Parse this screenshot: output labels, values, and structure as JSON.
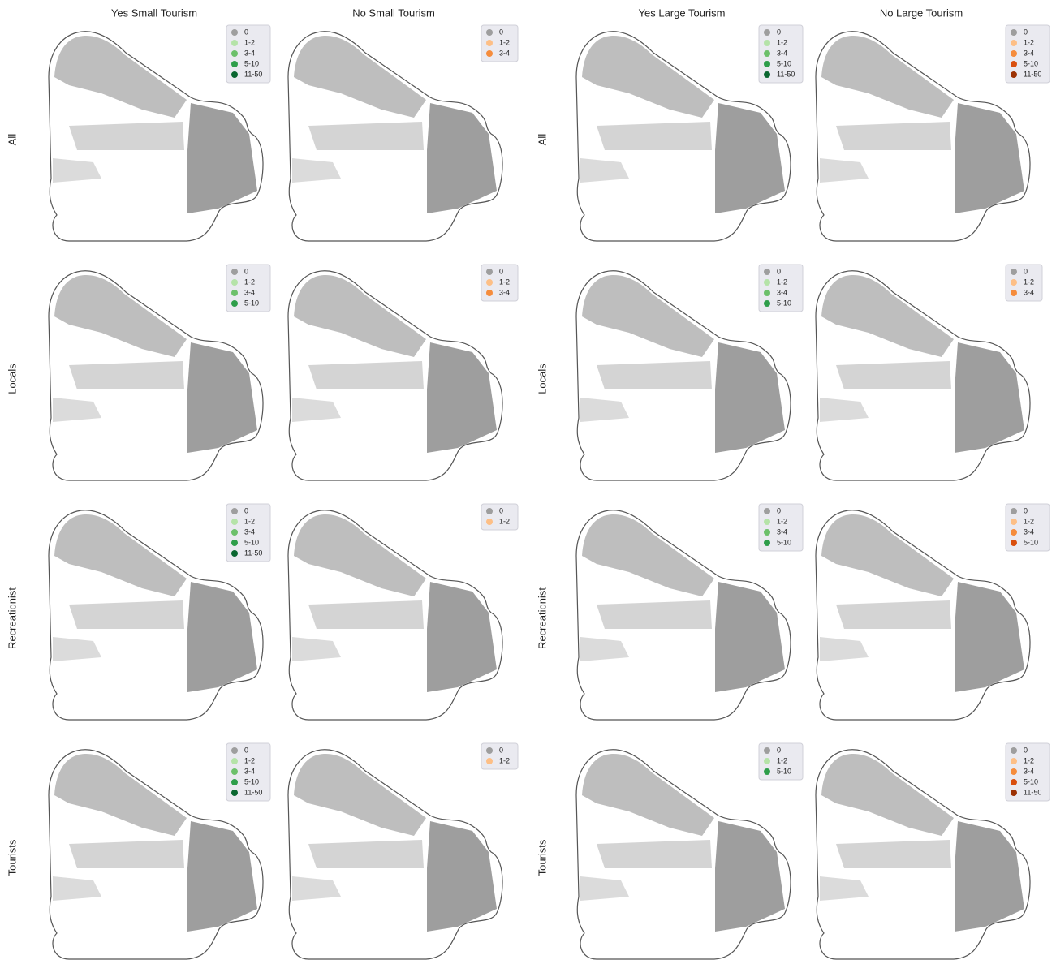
{
  "columns": [
    "Yes Small Tourism",
    "No Small Tourism",
    "Yes Large Tourism",
    "No Large Tourism"
  ],
  "rows": [
    "All",
    "Locals",
    "Recreationist",
    "Tourists"
  ],
  "panels": [
    [
      {
        "legend": [
          {
            "label": "0",
            "color": "#9e9e9e"
          },
          {
            "label": "1-2",
            "color": "#b5e3a8"
          },
          {
            "label": "3-4",
            "color": "#6cc06a"
          },
          {
            "label": "5-10",
            "color": "#2e9e4a"
          },
          {
            "label": "11-50",
            "color": "#0a6630"
          }
        ]
      },
      {
        "legend": [
          {
            "label": "0",
            "color": "#9e9e9e"
          },
          {
            "label": "1-2",
            "color": "#fdbf86"
          },
          {
            "label": "3-4",
            "color": "#f58c3c"
          }
        ]
      },
      {
        "legend": [
          {
            "label": "0",
            "color": "#9e9e9e"
          },
          {
            "label": "1-2",
            "color": "#b5e3a8"
          },
          {
            "label": "3-4",
            "color": "#6cc06a"
          },
          {
            "label": "5-10",
            "color": "#2e9e4a"
          },
          {
            "label": "11-50",
            "color": "#0a6630"
          }
        ]
      },
      {
        "legend": [
          {
            "label": "0",
            "color": "#9e9e9e"
          },
          {
            "label": "1-2",
            "color": "#fdbf86"
          },
          {
            "label": "3-4",
            "color": "#f58c3c"
          },
          {
            "label": "5-10",
            "color": "#d94f0e"
          },
          {
            "label": "11-50",
            "color": "#9c3204"
          }
        ]
      }
    ],
    [
      {
        "legend": [
          {
            "label": "0",
            "color": "#9e9e9e"
          },
          {
            "label": "1-2",
            "color": "#b5e3a8"
          },
          {
            "label": "3-4",
            "color": "#6cc06a"
          },
          {
            "label": "5-10",
            "color": "#2e9e4a"
          }
        ]
      },
      {
        "legend": [
          {
            "label": "0",
            "color": "#9e9e9e"
          },
          {
            "label": "1-2",
            "color": "#fdbf86"
          },
          {
            "label": "3-4",
            "color": "#f58c3c"
          }
        ]
      },
      {
        "legend": [
          {
            "label": "0",
            "color": "#9e9e9e"
          },
          {
            "label": "1-2",
            "color": "#b5e3a8"
          },
          {
            "label": "3-4",
            "color": "#6cc06a"
          },
          {
            "label": "5-10",
            "color": "#2e9e4a"
          }
        ]
      },
      {
        "legend": [
          {
            "label": "0",
            "color": "#9e9e9e"
          },
          {
            "label": "1-2",
            "color": "#fdbf86"
          },
          {
            "label": "3-4",
            "color": "#f58c3c"
          }
        ]
      }
    ],
    [
      {
        "legend": [
          {
            "label": "0",
            "color": "#9e9e9e"
          },
          {
            "label": "1-2",
            "color": "#b5e3a8"
          },
          {
            "label": "3-4",
            "color": "#6cc06a"
          },
          {
            "label": "5-10",
            "color": "#2e9e4a"
          },
          {
            "label": "11-50",
            "color": "#0a6630"
          }
        ]
      },
      {
        "legend": [
          {
            "label": "0",
            "color": "#9e9e9e"
          },
          {
            "label": "1-2",
            "color": "#fdbf86"
          }
        ]
      },
      {
        "legend": [
          {
            "label": "0",
            "color": "#9e9e9e"
          },
          {
            "label": "1-2",
            "color": "#b5e3a8"
          },
          {
            "label": "3-4",
            "color": "#6cc06a"
          },
          {
            "label": "5-10",
            "color": "#2e9e4a"
          }
        ]
      },
      {
        "legend": [
          {
            "label": "0",
            "color": "#9e9e9e"
          },
          {
            "label": "1-2",
            "color": "#fdbf86"
          },
          {
            "label": "3-4",
            "color": "#f58c3c"
          },
          {
            "label": "5-10",
            "color": "#d94f0e"
          }
        ]
      }
    ],
    [
      {
        "legend": [
          {
            "label": "0",
            "color": "#9e9e9e"
          },
          {
            "label": "1-2",
            "color": "#b5e3a8"
          },
          {
            "label": "3-4",
            "color": "#6cc06a"
          },
          {
            "label": "5-10",
            "color": "#2e9e4a"
          },
          {
            "label": "11-50",
            "color": "#0a6630"
          }
        ]
      },
      {
        "legend": [
          {
            "label": "0",
            "color": "#9e9e9e"
          },
          {
            "label": "1-2",
            "color": "#fdbf86"
          }
        ]
      },
      {
        "legend": [
          {
            "label": "0",
            "color": "#9e9e9e"
          },
          {
            "label": "1-2",
            "color": "#b5e3a8"
          },
          {
            "label": "5-10",
            "color": "#2e9e4a"
          }
        ]
      },
      {
        "legend": [
          {
            "label": "0",
            "color": "#9e9e9e"
          },
          {
            "label": "1-2",
            "color": "#fdbf86"
          },
          {
            "label": "3-4",
            "color": "#f58c3c"
          },
          {
            "label": "5-10",
            "color": "#d94f0e"
          },
          {
            "label": "11-50",
            "color": "#9c3204"
          }
        ]
      }
    ]
  ]
}
